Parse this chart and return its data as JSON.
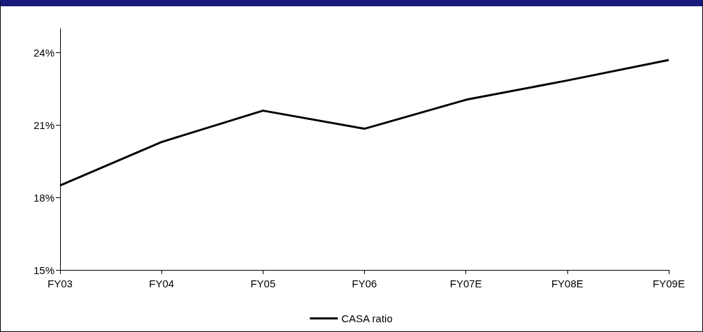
{
  "chart_data": {
    "type": "line",
    "categories": [
      "FY03",
      "FY04",
      "FY05",
      "FY06",
      "FY07E",
      "FY08E",
      "FY09E"
    ],
    "series": [
      {
        "name": "CASA ratio",
        "color": "#000000",
        "values": [
          18.5,
          20.3,
          21.6,
          20.85,
          22.05,
          22.85,
          23.7
        ]
      }
    ],
    "ylim": [
      15,
      25
    ],
    "yticks": [
      {
        "value": 15,
        "label": "15%"
      },
      {
        "value": 18,
        "label": "18%"
      },
      {
        "value": 21,
        "label": "21%"
      },
      {
        "value": 24,
        "label": "24%"
      }
    ],
    "grid": false,
    "legend": "bottom",
    "marker": "none",
    "line_style": "solid"
  }
}
